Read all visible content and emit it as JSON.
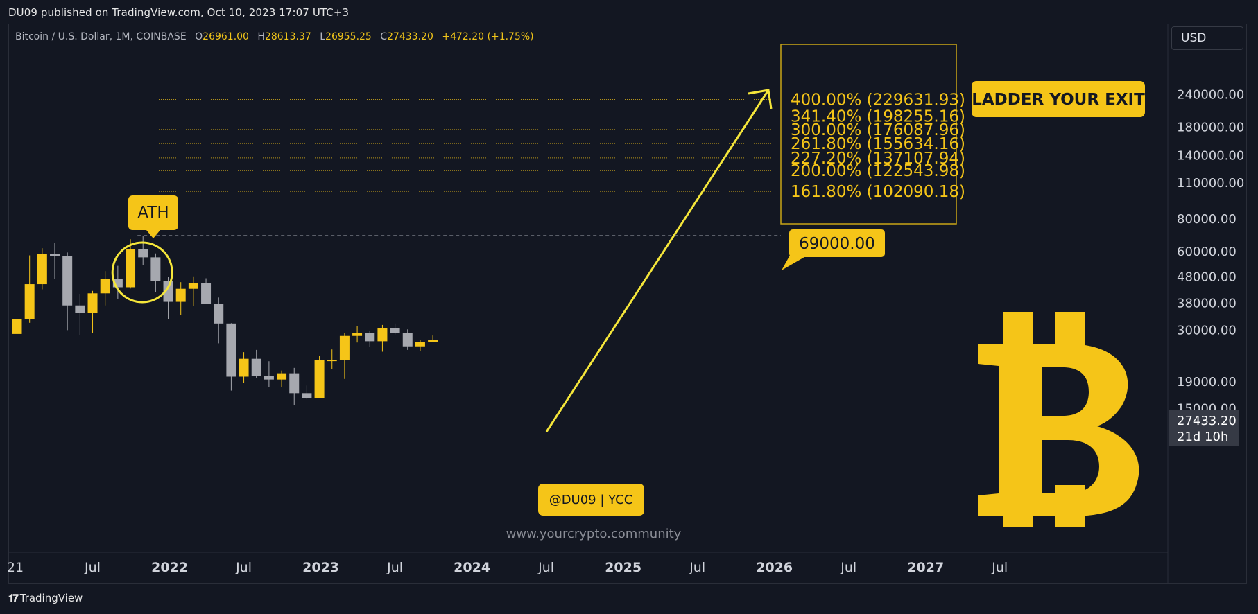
{
  "publisher": "DU09 published on TradingView.com, Oct 10, 2023 17:07 UTC+3",
  "symbol_bar": {
    "name": "Bitcoin / U.S. Dollar, 1M, COINBASE",
    "o_label": "O",
    "o": "26961.00",
    "h_label": "H",
    "h": "28613.37",
    "l_label": "L",
    "l": "26955.25",
    "c_label": "C",
    "c": "27433.20",
    "change": "+472.20 (+1.75%)"
  },
  "currency": "USD",
  "footer_logo": "TradingView",
  "colors": {
    "background": "#131722",
    "accent": "#f5c518",
    "bearish": "#a6a8af",
    "bullish": "#f5c518",
    "text": "#d1d4dc"
  },
  "annotations": {
    "ath_label": "ATH",
    "ath_price_label": "69000.00",
    "ladder_label": "LADDER YOUR EXIT",
    "signature": "@DU09 | YCC",
    "website": "www.yourcrypto.community",
    "current_price": "27433.20",
    "countdown": "21d 10h",
    "bitcoin_logo_icon": "bitcoin-icon"
  },
  "chart_data": {
    "type": "candlestick",
    "scale": "log",
    "y_tick_labels": [
      "240000.00",
      "180000.00",
      "140000.00",
      "110000.00",
      "80000.00",
      "60000.00",
      "48000.00",
      "38000.00",
      "30000.00",
      "19000.00",
      "15000.00"
    ],
    "y_ticks": [
      240000,
      180000,
      140000,
      110000,
      80000,
      60000,
      48000,
      38000,
      30000,
      19000,
      15000
    ],
    "x_tick_labels": [
      "21",
      "Jul",
      "2022",
      "Jul",
      "2023",
      "Jul",
      "2024",
      "Jul",
      "2025",
      "Jul",
      "2026",
      "Jul",
      "2027",
      "Jul"
    ],
    "x_ticks": [
      "2021-01",
      "2021-07",
      "2022-01",
      "2022-07",
      "2023-01",
      "2023-07",
      "2024-01",
      "2024-07",
      "2025-01",
      "2025-07",
      "2026-01",
      "2026-07",
      "2027-01",
      "2027-07"
    ],
    "candles": [
      {
        "date": "2021-01",
        "o": 29000,
        "h": 42000,
        "l": 28000,
        "c": 33000
      },
      {
        "date": "2021-02",
        "o": 33000,
        "h": 58000,
        "l": 32000,
        "c": 45000
      },
      {
        "date": "2021-03",
        "o": 45000,
        "h": 61800,
        "l": 43000,
        "c": 58800
      },
      {
        "date": "2021-04",
        "o": 58800,
        "h": 64800,
        "l": 47000,
        "c": 57700
      },
      {
        "date": "2021-05",
        "o": 57700,
        "h": 59500,
        "l": 30000,
        "c": 37300
      },
      {
        "date": "2021-06",
        "o": 37300,
        "h": 41300,
        "l": 28800,
        "c": 35000
      },
      {
        "date": "2021-07",
        "o": 35000,
        "h": 42400,
        "l": 29300,
        "c": 41500
      },
      {
        "date": "2021-08",
        "o": 41500,
        "h": 50500,
        "l": 37300,
        "c": 47100
      },
      {
        "date": "2021-09",
        "o": 47100,
        "h": 52900,
        "l": 39600,
        "c": 43800
      },
      {
        "date": "2021-10",
        "o": 43800,
        "h": 66900,
        "l": 43300,
        "c": 61300
      },
      {
        "date": "2021-11",
        "o": 61300,
        "h": 69000,
        "l": 53300,
        "c": 57000
      },
      {
        "date": "2021-12",
        "o": 57000,
        "h": 59000,
        "l": 42000,
        "c": 46200
      },
      {
        "date": "2022-01",
        "o": 46200,
        "h": 47900,
        "l": 33000,
        "c": 38500
      },
      {
        "date": "2022-02",
        "o": 38500,
        "h": 45800,
        "l": 34300,
        "c": 43200
      },
      {
        "date": "2022-03",
        "o": 43200,
        "h": 48200,
        "l": 37200,
        "c": 45500
      },
      {
        "date": "2022-04",
        "o": 45500,
        "h": 47400,
        "l": 37700,
        "c": 37700
      },
      {
        "date": "2022-05",
        "o": 37700,
        "h": 40000,
        "l": 26700,
        "c": 31800
      },
      {
        "date": "2022-06",
        "o": 31800,
        "h": 31900,
        "l": 17600,
        "c": 19900
      },
      {
        "date": "2022-07",
        "o": 19900,
        "h": 24700,
        "l": 18800,
        "c": 23300
      },
      {
        "date": "2022-08",
        "o": 23300,
        "h": 25200,
        "l": 19600,
        "c": 20000
      },
      {
        "date": "2022-09",
        "o": 20000,
        "h": 22800,
        "l": 18100,
        "c": 19400
      },
      {
        "date": "2022-10",
        "o": 19400,
        "h": 21000,
        "l": 18200,
        "c": 20500
      },
      {
        "date": "2022-11",
        "o": 20500,
        "h": 21500,
        "l": 15500,
        "c": 17200
      },
      {
        "date": "2022-12",
        "o": 17200,
        "h": 18400,
        "l": 16300,
        "c": 16500
      },
      {
        "date": "2023-01",
        "o": 16500,
        "h": 23900,
        "l": 16500,
        "c": 23100
      },
      {
        "date": "2023-02",
        "o": 23100,
        "h": 25300,
        "l": 21300,
        "c": 23100
      },
      {
        "date": "2023-03",
        "o": 23100,
        "h": 29200,
        "l": 19500,
        "c": 28500
      },
      {
        "date": "2023-04",
        "o": 28500,
        "h": 31000,
        "l": 26900,
        "c": 29300
      },
      {
        "date": "2023-05",
        "o": 29300,
        "h": 29800,
        "l": 25800,
        "c": 27200
      },
      {
        "date": "2023-06",
        "o": 27200,
        "h": 31400,
        "l": 24800,
        "c": 30500
      },
      {
        "date": "2023-07",
        "o": 30500,
        "h": 31800,
        "l": 28900,
        "c": 29200
      },
      {
        "date": "2023-08",
        "o": 29200,
        "h": 30200,
        "l": 25200,
        "c": 26000
      },
      {
        "date": "2023-09",
        "o": 26000,
        "h": 27500,
        "l": 24900,
        "c": 26961
      },
      {
        "date": "2023-10",
        "o": 26961,
        "h": 28613.37,
        "l": 26955.25,
        "c": 27433.2
      }
    ],
    "ath": 69000,
    "fib_levels": [
      {
        "label": "400.00% (229631.93)",
        "value": 229631.93
      },
      {
        "label": "341.40% (198255.16)",
        "value": 198255.16
      },
      {
        "label": "300.00% (176087.96)",
        "value": 176087.96
      },
      {
        "label": "261.80% (155634.16)",
        "value": 155634.16
      },
      {
        "label": "227.20% (137107.94)",
        "value": 137107.94
      },
      {
        "label": "200.00% (122543.98)",
        "value": 122543.98
      },
      {
        "label": "161.80% (102090.18)",
        "value": 102090.18
      }
    ],
    "projection_arrow": {
      "from": {
        "date": "2024-01",
        "value": 25000
      },
      "to": {
        "date": "2025-06",
        "value": 200000
      }
    }
  }
}
